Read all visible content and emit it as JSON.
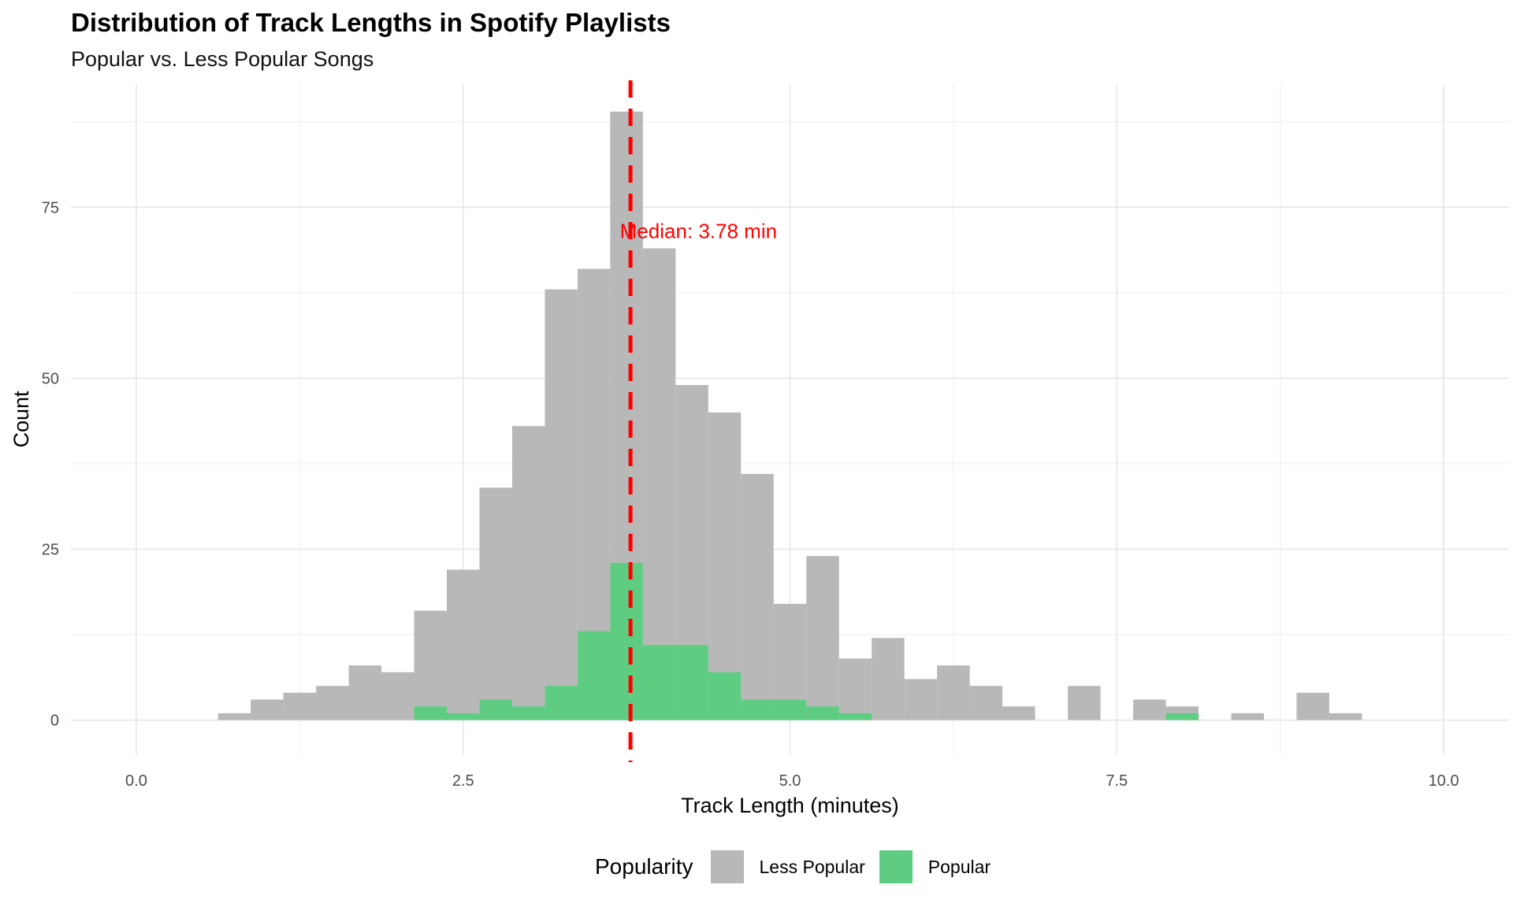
{
  "chart_data": {
    "type": "bar",
    "title": "Distribution of Track Lengths in Spotify Playlists",
    "subtitle": "Popular vs. Less Popular Songs",
    "xlabel": "Track Length (minutes)",
    "ylabel": "Count",
    "xlim": [
      -0.5,
      10.5
    ],
    "ylim": [
      -5,
      93
    ],
    "x_ticks": [
      0,
      2.5,
      5,
      7.5,
      10
    ],
    "x_tick_labels": [
      "0.0",
      "2.5",
      "5.0",
      "7.5",
      "10.0"
    ],
    "y_ticks": [
      0,
      25,
      50,
      75
    ],
    "y_tick_labels": [
      "0",
      "25",
      "50",
      "75"
    ],
    "grid": true,
    "legend_position": "bottom",
    "legend_title": "Popularity",
    "bin_width": 0.25,
    "bin_starts": [
      0.625,
      0.875,
      1.125,
      1.375,
      1.625,
      1.875,
      2.125,
      2.375,
      2.625,
      2.875,
      3.125,
      3.375,
      3.625,
      3.875,
      4.125,
      4.375,
      4.625,
      4.875,
      5.125,
      5.375,
      5.625,
      5.875,
      6.125,
      6.375,
      6.625,
      6.875,
      7.125,
      7.375,
      7.625,
      7.875,
      8.125,
      8.375,
      8.625,
      8.875,
      9.125
    ],
    "series": [
      {
        "name": "Less Popular",
        "color": "#b8b8b8",
        "values": [
          1,
          3,
          4,
          5,
          8,
          7,
          16,
          22,
          34,
          43,
          63,
          66,
          89,
          69,
          49,
          45,
          36,
          17,
          24,
          9,
          12,
          6,
          8,
          5,
          2,
          0,
          5,
          0,
          3,
          2,
          0,
          1,
          0,
          4,
          1
        ]
      },
      {
        "name": "Popular",
        "color": "#5ecd82",
        "values": [
          0,
          0,
          0,
          0,
          0,
          0,
          2,
          1,
          3,
          2,
          5,
          13,
          23,
          11,
          11,
          7,
          3,
          3,
          2,
          1,
          0,
          0,
          0,
          0,
          0,
          0,
          0,
          0,
          0,
          1,
          0,
          0,
          0,
          0,
          0
        ]
      }
    ],
    "median_line": {
      "x": 3.78,
      "color": "#ff0000",
      "style": "dashed"
    },
    "annotation": {
      "text": "Median: 3.78 min",
      "x": 4.3,
      "y": 71.5,
      "color": "#ff0000"
    }
  }
}
